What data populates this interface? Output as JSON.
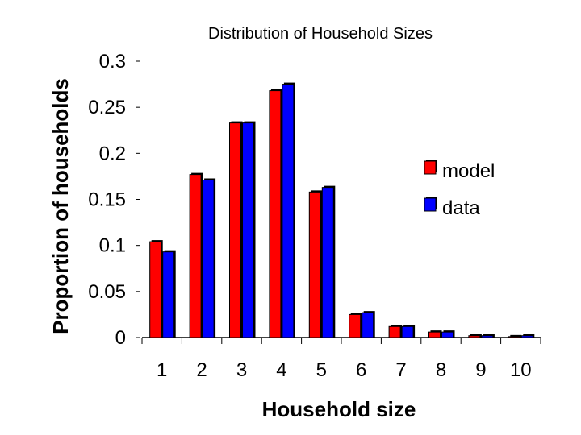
{
  "chart_data": {
    "type": "bar",
    "title": "Distribution of Household Sizes",
    "xlabel": "Household size",
    "ylabel": "Proportion of households",
    "categories": [
      "1",
      "2",
      "3",
      "4",
      "5",
      "6",
      "7",
      "8",
      "9",
      "10"
    ],
    "series": [
      {
        "name": "model",
        "color": "#ff0000",
        "values": [
          0.104,
          0.177,
          0.233,
          0.268,
          0.158,
          0.025,
          0.012,
          0.006,
          0.002,
          0.001
        ]
      },
      {
        "name": "data",
        "color": "#0000ff",
        "values": [
          0.093,
          0.171,
          0.233,
          0.275,
          0.163,
          0.027,
          0.012,
          0.006,
          0.002,
          0.002
        ]
      }
    ],
    "ylim": [
      0,
      0.3
    ],
    "yticks": [
      "0",
      "0.05",
      "0.1",
      "0.15",
      "0.2",
      "0.25",
      "0.3"
    ],
    "grid": false,
    "legend_position": "right"
  }
}
